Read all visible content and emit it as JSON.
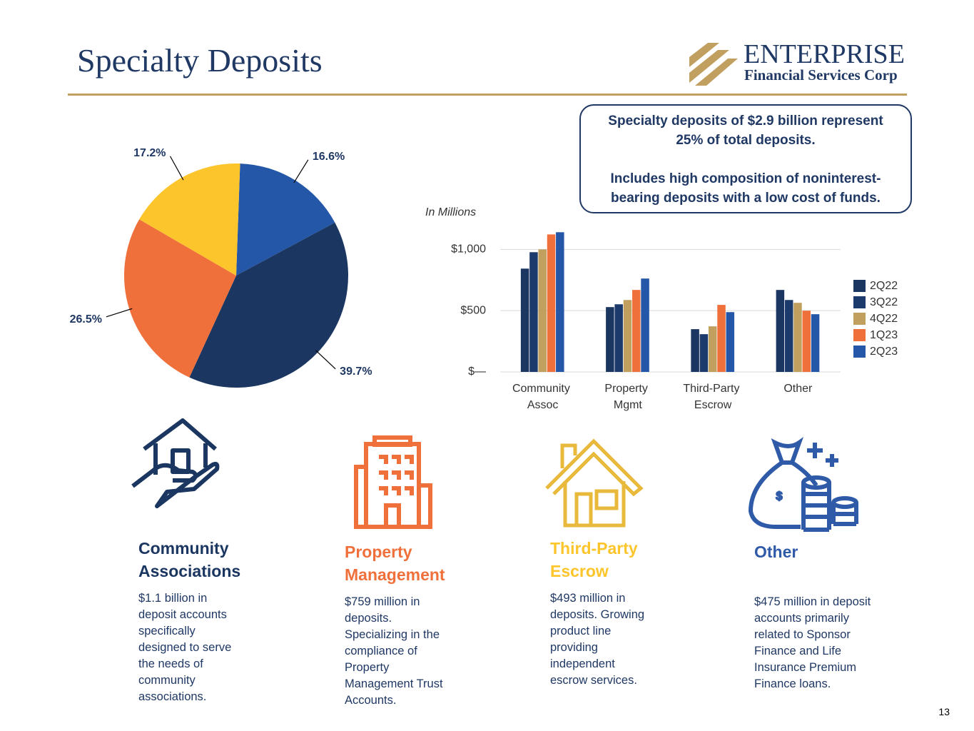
{
  "header": {
    "title": "Specialty Deposits",
    "logo_name": "ENTERPRISE",
    "logo_sub": "Financial Services Corp"
  },
  "callout": {
    "line1": "Specialty deposits of $2.9 billion represent 25% of total deposits.",
    "line2": "Includes high composition of noninterest-bearing deposits with a low cost of funds."
  },
  "chart_data": [
    {
      "type": "pie",
      "values": [
        16.6,
        39.7,
        26.5,
        17.2
      ],
      "value_labels": [
        "16.6%",
        "39.7%",
        "26.5%",
        "17.2%"
      ],
      "colors": [
        "#2457a8",
        "#1b3660",
        "#f0703c",
        "#fcc52b"
      ]
    },
    {
      "type": "bar",
      "y_label": "In Millions",
      "categories": [
        "Community Assoc",
        "Property Mgmt",
        "Third-Party Escrow",
        "Other"
      ],
      "series": [
        {
          "name": "2Q22",
          "color": "#1b3660",
          "values": [
            843,
            529,
            349,
            669
          ]
        },
        {
          "name": "3Q22",
          "color": "#1c3a6b",
          "values": [
            977,
            552,
            308,
            587
          ]
        },
        {
          "name": "4Q22",
          "color": "#c09f5f",
          "values": [
            1000,
            587,
            372,
            564
          ]
        },
        {
          "name": "1Q23",
          "color": "#f0703c",
          "values": [
            1122,
            669,
            547,
            500
          ]
        },
        {
          "name": "2Q23",
          "color": "#2457a8",
          "values": [
            1140,
            762,
            488,
            471
          ]
        }
      ],
      "ylim": [
        0,
        1200
      ],
      "yticks": [
        {
          "value": 0,
          "label": "$—"
        },
        {
          "value": 500,
          "label": "$500"
        },
        {
          "value": 1000,
          "label": "$1,000"
        }
      ],
      "grid": true,
      "legend": "right"
    }
  ],
  "segments": [
    {
      "title": "Community Associations",
      "color": "#1b3660",
      "text": "$1.1 billion in deposit accounts specifically designed to serve the needs of community associations."
    },
    {
      "title": "Property Management",
      "color": "#f0703c",
      "text": "$759 million in deposits. Specializing in the compliance of Property Management Trust Accounts."
    },
    {
      "title": "Third-Party Escrow",
      "color": "#fcc52b",
      "text": "$493 million in deposits. Growing product line providing independent escrow services."
    },
    {
      "title": "Other",
      "color": "#2f5aa8",
      "text": "$475 million in deposit accounts primarily related to Sponsor Finance and Life Insurance Premium Finance loans."
    }
  ],
  "page_number": 13
}
